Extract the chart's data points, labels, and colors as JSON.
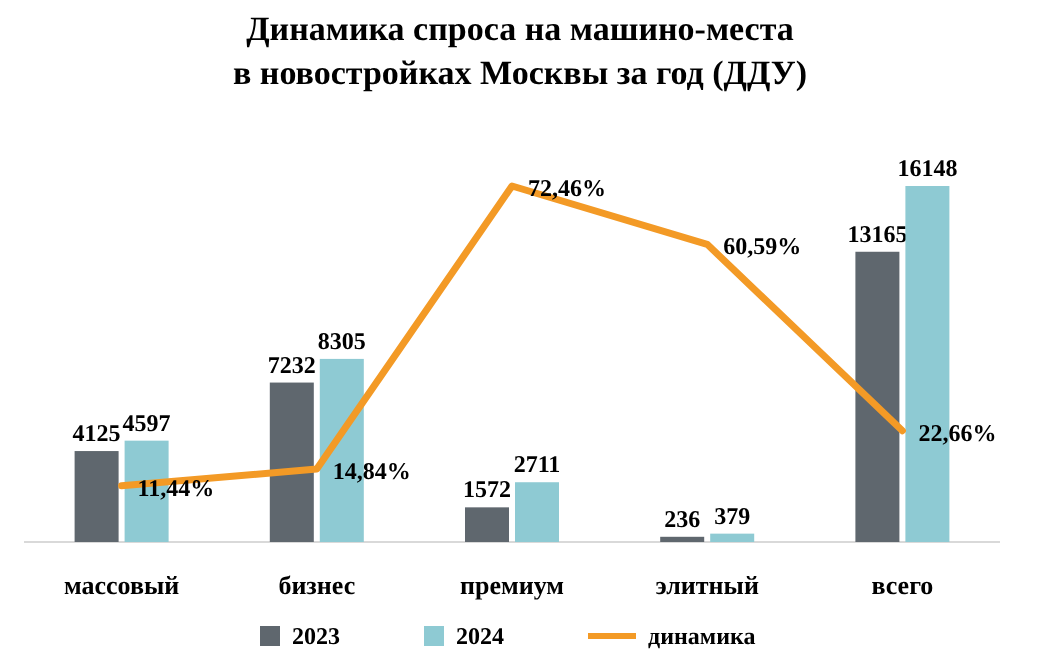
{
  "chart_data": {
    "type": "bar",
    "title": "Динамика спроса на машино-места\nв новостройках Москвы за год (ДДУ)",
    "categories": [
      "массовый",
      "бизнес",
      "премиум",
      "элитный",
      "всего"
    ],
    "data_labels": true,
    "legend": "bottom",
    "series": [
      {
        "name": "2023",
        "color": "#5f676e",
        "values": [
          4125,
          7232,
          1572,
          236,
          13165
        ]
      },
      {
        "name": "2024",
        "color": "#8ecad3",
        "values": [
          4597,
          8305,
          2711,
          379,
          16148
        ]
      },
      {
        "name": "динамика",
        "type": "line",
        "axis": "y2",
        "color": "#f39a26",
        "values": [
          11.44,
          14.84,
          72.46,
          60.59,
          22.66
        ],
        "value_labels": [
          "11,44%",
          "14,84%",
          "72,46%",
          "60,59%",
          "22,66%"
        ]
      }
    ]
  }
}
